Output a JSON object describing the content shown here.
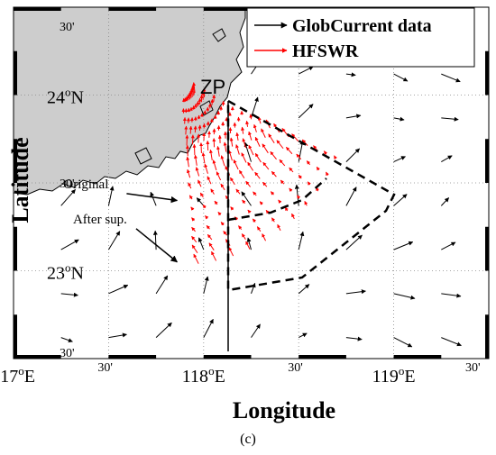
{
  "map": {
    "x_axis_title": "Longitude",
    "y_axis_title": "Latitude",
    "caption": "(c)",
    "x_ticks": [
      {
        "lon": 117.0,
        "deg": "117",
        "hemi": "E"
      },
      {
        "lon": 118.0,
        "deg": "118",
        "hemi": "E"
      },
      {
        "lon": 119.0,
        "deg": "119",
        "hemi": "E"
      }
    ],
    "x_minor_ticks": [
      {
        "lon": 117.5,
        "label": "30'"
      },
      {
        "lon": 118.5,
        "label": "30'"
      },
      {
        "lon": 119.5,
        "label": "30'"
      }
    ],
    "y_ticks": [
      {
        "lat": 24.0,
        "deg": "24",
        "hemi": "N"
      },
      {
        "lat": 23.0,
        "deg": "23",
        "hemi": "N"
      }
    ],
    "y_minor_ticks": [
      {
        "lat": 24.5,
        "label": "30'"
      },
      {
        "lat": 23.5,
        "label": "30'"
      },
      {
        "lat": 22.5,
        "label": "30'"
      }
    ],
    "degree_symbol": "o",
    "lon_range": [
      117.0,
      119.5
    ],
    "lat_range": [
      22.5,
      24.5
    ],
    "legend": {
      "items": [
        {
          "label": "GlobCurrent data",
          "color": "#000000"
        },
        {
          "label": "HFSWR",
          "color": "#ff0000"
        }
      ],
      "placement": "top-right"
    },
    "site_label": "ZP",
    "site": {
      "lon": 117.88,
      "lat": 24.05
    },
    "annotations": [
      {
        "text": "Original",
        "lon": 117.5,
        "lat": 23.47,
        "arrow_to": {
          "lon": 117.87,
          "lat": 23.4
        }
      },
      {
        "text": "After sup.",
        "lon": 117.55,
        "lat": 23.27,
        "arrow_to": {
          "lon": 117.87,
          "lat": 23.05
        }
      }
    ],
    "colors": {
      "land": "#cdcdcd",
      "coast": "#000000",
      "hfswr": "#ff0000",
      "globcurrent": "#000000",
      "grid": "#888888"
    }
  }
}
